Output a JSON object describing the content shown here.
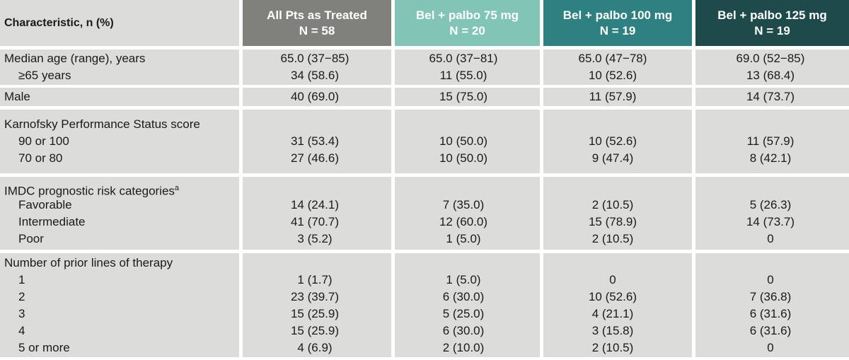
{
  "table": {
    "header": {
      "characteristic": "Characteristic, n (%)",
      "columns": [
        {
          "title": "All Pts as Treated",
          "n": "N = 58",
          "color": "#80807c"
        },
        {
          "title": "Bel + palbo 75 mg",
          "n": "N = 20",
          "color": "#80c5b5"
        },
        {
          "title": "Bel + palbo 100 mg",
          "n": "N = 19",
          "color": "#2f8080"
        },
        {
          "title": "Bel + palbo 125 mg",
          "n": "N = 19",
          "color": "#1e4a4a"
        }
      ]
    },
    "groups": [
      {
        "rows": [
          {
            "label": "Median age (range), years",
            "values": [
              "65.0 (37−85)",
              "65.0 (37−81)",
              "65.0 (47−78)",
              "69.0 (52−85)"
            ]
          },
          {
            "label": "≥65 years",
            "values": [
              "34 (58.6)",
              "11 (55.0)",
              "10 (52.6)",
              "13 (68.4)"
            ]
          }
        ]
      },
      {
        "rows": [
          {
            "label": "Male",
            "values": [
              "40 (69.0)",
              "15 (75.0)",
              "11 (57.9)",
              "14 (73.7)"
            ]
          }
        ]
      },
      {
        "rows": [
          {
            "label": "Karnofsky Performance Status score"
          },
          {
            "label": "90 or 100",
            "values": [
              "31 (53.4)",
              "10 (50.0)",
              "10 (52.6)",
              "11 (57.9)"
            ]
          },
          {
            "label": "70 or 80",
            "values": [
              "27 (46.6)",
              "10 (50.0)",
              "9 (47.4)",
              "8 (42.1)"
            ]
          }
        ]
      },
      {
        "rows": [
          {
            "label": "IMDC prognostic risk categories",
            "label_sup": "a"
          },
          {
            "label": "Favorable",
            "values": [
              "14 (24.1)",
              "7 (35.0)",
              "2 (10.5)",
              "5 (26.3)"
            ]
          },
          {
            "label": "Intermediate",
            "values": [
              "41 (70.7)",
              "12 (60.0)",
              "15 (78.9)",
              "14 (73.7)"
            ]
          },
          {
            "label": "Poor",
            "values": [
              "3 (5.2)",
              "1 (5.0)",
              "2 (10.5)",
              "0"
            ]
          }
        ]
      },
      {
        "rows": [
          {
            "label": "Number of prior lines of therapy"
          },
          {
            "label": "1",
            "values": [
              "1 (1.7)",
              "1 (5.0)",
              "0",
              "0"
            ]
          },
          {
            "label": "2",
            "values": [
              "23 (39.7)",
              "6 (30.0)",
              "10 (52.6)",
              "7 (36.8)"
            ]
          },
          {
            "label": "3",
            "values": [
              "15 (25.9)",
              "5 (25.0)",
              "4 (21.1)",
              "6 (31.6)"
            ]
          },
          {
            "label": "4",
            "values": [
              "15 (25.9)",
              "6 (30.0)",
              "3 (15.8)",
              "6 (31.6)"
            ]
          },
          {
            "label": "5 or more",
            "values": [
              "4 (6.9)",
              "2 (10.0)",
              "2 (10.5)",
              "0"
            ]
          }
        ]
      }
    ]
  }
}
